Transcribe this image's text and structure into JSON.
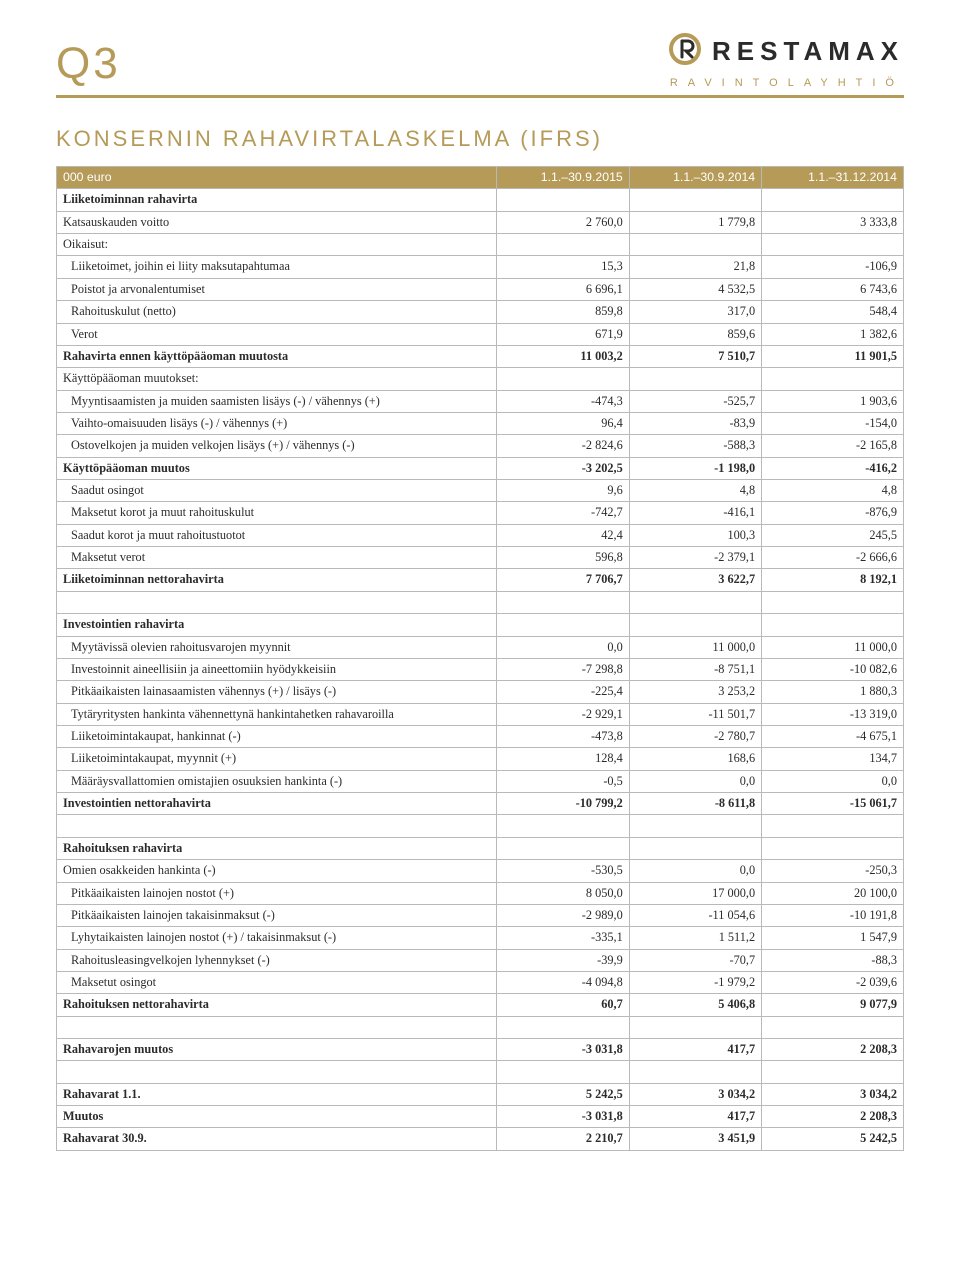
{
  "header": {
    "quarter": "Q3",
    "brand": "RESTAMAX",
    "sub": "RAVINTOLAYHTIÖ",
    "accent": "#b59a58",
    "logo_stroke": "#b59a58"
  },
  "title": "KONSERNIN RAHAVIRTALASKELMA (IFRS)",
  "columns": [
    "000 euro",
    "1.1.–30.9.2015",
    "1.1.–30.9.2014",
    "1.1.–31.12.2014"
  ],
  "rows": [
    {
      "type": "section",
      "label": "Liiketoiminnan rahavirta"
    },
    {
      "label": "Katsauskauden voitto",
      "v": [
        "2 760,0",
        "1 779,8",
        "3 333,8"
      ]
    },
    {
      "label": "Oikaisut:"
    },
    {
      "label": "Liiketoimet, joihin ei liity maksutapahtumaa",
      "indent": true,
      "v": [
        "15,3",
        "21,8",
        "-106,9"
      ]
    },
    {
      "label": "Poistot ja arvonalentumiset",
      "indent": true,
      "v": [
        "6 696,1",
        "4 532,5",
        "6 743,6"
      ]
    },
    {
      "label": "Rahoituskulut (netto)",
      "indent": true,
      "v": [
        "859,8",
        "317,0",
        "548,4"
      ]
    },
    {
      "label": "Verot",
      "indent": true,
      "v": [
        "671,9",
        "859,6",
        "1 382,6"
      ]
    },
    {
      "label": "Rahavirta ennen käyttöpääoman muutosta",
      "bold": true,
      "v": [
        "11 003,2",
        "7 510,7",
        "11 901,5"
      ]
    },
    {
      "label": "Käyttöpääoman muutokset:"
    },
    {
      "label": "Myyntisaamisten ja muiden saamisten lisäys (-) / vähennys (+)",
      "indent": true,
      "v": [
        "-474,3",
        "-525,7",
        "1 903,6"
      ]
    },
    {
      "label": "Vaihto-omaisuuden lisäys (-) / vähennys (+)",
      "indent": true,
      "v": [
        "96,4",
        "-83,9",
        "-154,0"
      ]
    },
    {
      "label": "Ostovelkojen ja muiden velkojen lisäys (+) / vähennys (-)",
      "indent": true,
      "v": [
        "-2 824,6",
        "-588,3",
        "-2 165,8"
      ]
    },
    {
      "label": "Käyttöpääoman muutos",
      "bold": true,
      "v": [
        "-3 202,5",
        "-1 198,0",
        "-416,2"
      ]
    },
    {
      "label": "Saadut osingot",
      "indent": true,
      "v": [
        "9,6",
        "4,8",
        "4,8"
      ]
    },
    {
      "label": "Maksetut korot ja muut rahoituskulut",
      "indent": true,
      "v": [
        "-742,7",
        "-416,1",
        "-876,9"
      ]
    },
    {
      "label": "Saadut korot ja muut rahoitustuotot",
      "indent": true,
      "v": [
        "42,4",
        "100,3",
        "245,5"
      ]
    },
    {
      "label": "Maksetut verot",
      "indent": true,
      "v": [
        "596,8",
        "-2 379,1",
        "-2 666,6"
      ]
    },
    {
      "label": "Liiketoiminnan nettorahavirta",
      "bold": true,
      "v": [
        "7 706,7",
        "3 622,7",
        "8 192,1"
      ]
    },
    {
      "type": "spacer"
    },
    {
      "type": "section",
      "label": "Investointien rahavirta"
    },
    {
      "label": "Myytävissä olevien rahoitusvarojen myynnit",
      "indent": true,
      "v": [
        "0,0",
        "11 000,0",
        "11 000,0"
      ]
    },
    {
      "label": "Investoinnit aineellisiin ja aineettomiin hyödykkeisiin",
      "indent": true,
      "v": [
        "-7 298,8",
        "-8 751,1",
        "-10 082,6"
      ]
    },
    {
      "label": "Pitkäaikaisten lainasaamisten vähennys (+) / lisäys (-)",
      "indent": true,
      "v": [
        "-225,4",
        "3 253,2",
        "1 880,3"
      ]
    },
    {
      "label": "Tytäryritysten hankinta vähennettynä hankintahetken rahavaroilla",
      "indent": true,
      "v": [
        "-2 929,1",
        "-11 501,7",
        "-13 319,0"
      ]
    },
    {
      "label": "Liiketoimintakaupat, hankinnat (-)",
      "indent": true,
      "v": [
        "-473,8",
        "-2 780,7",
        "-4 675,1"
      ]
    },
    {
      "label": "Liiketoimintakaupat, myynnit (+)",
      "indent": true,
      "v": [
        "128,4",
        "168,6",
        "134,7"
      ]
    },
    {
      "label": "Määräysvallattomien omistajien osuuksien hankinta (-)",
      "indent": true,
      "v": [
        "-0,5",
        "0,0",
        "0,0"
      ]
    },
    {
      "label": "Investointien nettorahavirta",
      "bold": true,
      "v": [
        "-10 799,2",
        "-8 611,8",
        "-15 061,7"
      ]
    },
    {
      "type": "spacer"
    },
    {
      "type": "section",
      "label": "Rahoituksen rahavirta"
    },
    {
      "label": "Omien osakkeiden hankinta (-)",
      "v": [
        "-530,5",
        "0,0",
        "-250,3"
      ]
    },
    {
      "label": "Pitkäaikaisten lainojen nostot (+)",
      "indent": true,
      "v": [
        "8 050,0",
        "17 000,0",
        "20 100,0"
      ]
    },
    {
      "label": "Pitkäaikaisten lainojen takaisinmaksut (-)",
      "indent": true,
      "v": [
        "-2 989,0",
        "-11 054,6",
        "-10 191,8"
      ]
    },
    {
      "label": "Lyhytaikaisten lainojen nostot (+) / takaisinmaksut (-)",
      "indent": true,
      "v": [
        "-335,1",
        "1 511,2",
        "1 547,9"
      ]
    },
    {
      "label": "Rahoitusleasingvelkojen lyhennykset (-)",
      "indent": true,
      "v": [
        "-39,9",
        "-70,7",
        "-88,3"
      ]
    },
    {
      "label": "Maksetut osingot",
      "indent": true,
      "v": [
        "-4 094,8",
        "-1 979,2",
        "-2 039,6"
      ]
    },
    {
      "label": "Rahoituksen nettorahavirta",
      "bold": true,
      "v": [
        "60,7",
        "5 406,8",
        "9 077,9"
      ]
    },
    {
      "type": "spacer"
    },
    {
      "label": "Rahavarojen muutos",
      "bold": true,
      "v": [
        "-3 031,8",
        "417,7",
        "2 208,3"
      ]
    },
    {
      "type": "spacer"
    },
    {
      "label": "Rahavarat 1.1.",
      "bold": true,
      "v": [
        "5 242,5",
        "3 034,2",
        "3 034,2"
      ]
    },
    {
      "label": "Muutos",
      "bold": true,
      "v": [
        "-3 031,8",
        "417,7",
        "2 208,3"
      ]
    },
    {
      "label": "Rahavarat 30.9.",
      "bold": true,
      "v": [
        "2 210,7",
        "3 451,9",
        "5 242,5"
      ]
    }
  ]
}
